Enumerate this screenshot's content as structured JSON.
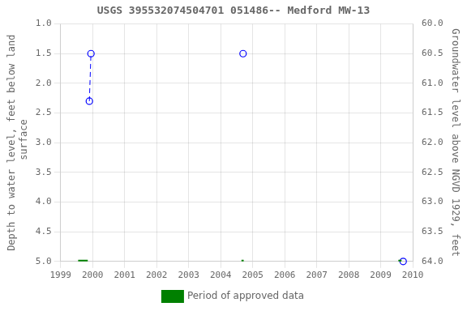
{
  "chart_data": {
    "type": "scatter",
    "title": "USGS 395532074504701 051486-- Medford MW-13",
    "y_label": "Depth to water level, feet below land\n surface",
    "y2_label": "Groundwater level above NGVD 1929, feet",
    "xlim": [
      1999,
      2010
    ],
    "xticks": [
      1999,
      2000,
      2001,
      2002,
      2003,
      2004,
      2005,
      2006,
      2007,
      2008,
      2009,
      2010
    ],
    "ylim": [
      5.0,
      1.0
    ],
    "yticks": [
      {
        "value": 1.0,
        "label": "1.0"
      },
      1.5,
      {
        "value": 2.0,
        "label": "2.0"
      },
      2.5,
      {
        "value": 3.0,
        "label": "3.0"
      },
      3.5,
      {
        "value": 4.0,
        "label": "4.0"
      },
      4.5,
      {
        "value": 5.0,
        "label": "5.0"
      }
    ],
    "y2lim": [
      64.0,
      60.0
    ],
    "y2ticks": [
      {
        "value": 60.0,
        "label": "60.0"
      },
      60.5,
      {
        "value": 61.0,
        "label": "61.0"
      },
      61.5,
      {
        "value": 62.0,
        "label": "62.0"
      },
      62.5,
      {
        "value": 63.0,
        "label": "63.0"
      },
      63.5,
      {
        "value": 64.0,
        "label": "64.0"
      }
    ],
    "grid": true,
    "legend": "bottom",
    "series": [
      {
        "color": "#0000ff",
        "line_style": "dashed",
        "marker": "none",
        "x": [
          1999.9,
          1999.95
        ],
        "values": [
          2.3,
          1.5
        ]
      },
      {
        "color": "#0000ff",
        "line_style": "none",
        "marker": "open_circle",
        "x": [
          1999.9,
          1999.95,
          2004.7,
          2009.7
        ],
        "values": [
          2.3,
          1.5,
          1.5,
          5.0
        ]
      },
      {
        "name": "Period of approved data",
        "type": "range",
        "color": "#008000",
        "line_style": "solid",
        "marker": "none",
        "x_start": [
          1999.55,
          2004.65,
          2009.55
        ],
        "x_end": [
          1999.85,
          2004.72,
          2009.65
        ],
        "values": [
          5.0,
          5.0,
          5.0
        ]
      }
    ]
  }
}
